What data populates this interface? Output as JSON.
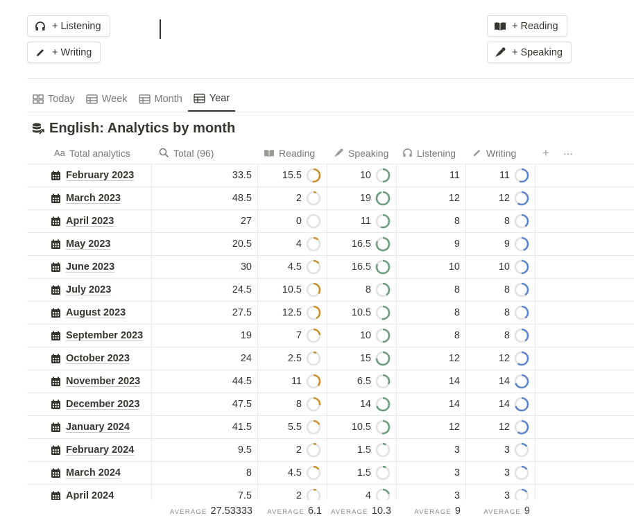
{
  "buttons": {
    "listening": "+ Listening",
    "writing": "+ Writing",
    "reading": "+ Reading",
    "speaking": "+ Speaking"
  },
  "tabs": [
    {
      "label": "Today",
      "icon": "gallery-icon"
    },
    {
      "label": "Week",
      "icon": "table-icon"
    },
    {
      "label": "Month",
      "icon": "table-icon"
    },
    {
      "label": "Year",
      "icon": "table-icon",
      "active": true
    }
  ],
  "view_title": "English: Analytics by month",
  "columns": {
    "name": "Total analytics",
    "total": "Total (96)",
    "reading": "Reading",
    "speaking": "Speaking",
    "listening": "Listening",
    "writing": "Writing",
    "add": "+",
    "more": "···"
  },
  "colors": {
    "reading_ring": "#cb912f",
    "speaking_ring": "#6c9b7d",
    "writing_ring": "#5e87c9",
    "ring_track": "#e3e2e0"
  },
  "rows": [
    {
      "name": "February 2023",
      "total": "33.5",
      "reading": "15.5",
      "speaking": "10",
      "listening": "11",
      "writing": "11",
      "reading_pct": 0.52,
      "speaking_pct": 0.5,
      "writing_pct": 0.55
    },
    {
      "name": "March 2023",
      "total": "48.5",
      "reading": "2",
      "speaking": "19",
      "listening": "12",
      "writing": "12",
      "reading_pct": 0.07,
      "speaking_pct": 0.95,
      "writing_pct": 0.6
    },
    {
      "name": "April 2023",
      "total": "27",
      "reading": "0",
      "speaking": "11",
      "listening": "8",
      "writing": "8",
      "reading_pct": 0,
      "speaking_pct": 0.55,
      "writing_pct": 0.4
    },
    {
      "name": "May 2023",
      "total": "20.5",
      "reading": "4",
      "speaking": "16.5",
      "listening": "9",
      "writing": "9",
      "reading_pct": 0.13,
      "speaking_pct": 0.82,
      "writing_pct": 0.45
    },
    {
      "name": "June 2023",
      "total": "30",
      "reading": "4.5",
      "speaking": "16.5",
      "listening": "10",
      "writing": "10",
      "reading_pct": 0.15,
      "speaking_pct": 0.82,
      "writing_pct": 0.5
    },
    {
      "name": "July 2023",
      "total": "24.5",
      "reading": "10.5",
      "speaking": "8",
      "listening": "8",
      "writing": "8",
      "reading_pct": 0.35,
      "speaking_pct": 0.4,
      "writing_pct": 0.4
    },
    {
      "name": "August 2023",
      "total": "27.5",
      "reading": "12.5",
      "speaking": "10.5",
      "listening": "8",
      "writing": "8",
      "reading_pct": 0.42,
      "speaking_pct": 0.52,
      "writing_pct": 0.4
    },
    {
      "name": "September 2023",
      "total": "19",
      "reading": "7",
      "speaking": "10",
      "listening": "8",
      "writing": "8",
      "reading_pct": 0.23,
      "speaking_pct": 0.5,
      "writing_pct": 0.4
    },
    {
      "name": "October 2023",
      "total": "24",
      "reading": "2.5",
      "speaking": "15",
      "listening": "12",
      "writing": "12",
      "reading_pct": 0.08,
      "speaking_pct": 0.75,
      "writing_pct": 0.6
    },
    {
      "name": "November 2023",
      "total": "44.5",
      "reading": "11",
      "speaking": "6.5",
      "listening": "14",
      "writing": "14",
      "reading_pct": 0.37,
      "speaking_pct": 0.32,
      "writing_pct": 0.7
    },
    {
      "name": "December 2023",
      "total": "47.5",
      "reading": "8",
      "speaking": "14",
      "listening": "14",
      "writing": "14",
      "reading_pct": 0.27,
      "speaking_pct": 0.7,
      "writing_pct": 0.7
    },
    {
      "name": "January 2024",
      "total": "41.5",
      "reading": "5.5",
      "speaking": "10.5",
      "listening": "12",
      "writing": "12",
      "reading_pct": 0.18,
      "speaking_pct": 0.52,
      "writing_pct": 0.6
    },
    {
      "name": "February 2024",
      "total": "9.5",
      "reading": "2",
      "speaking": "1.5",
      "listening": "3",
      "writing": "3",
      "reading_pct": 0.07,
      "speaking_pct": 0.08,
      "writing_pct": 0.15
    },
    {
      "name": "March 2024",
      "total": "8",
      "reading": "4.5",
      "speaking": "1.5",
      "listening": "3",
      "writing": "3",
      "reading_pct": 0.15,
      "speaking_pct": 0.08,
      "writing_pct": 0.15
    },
    {
      "name": "April 2024",
      "total": "7.5",
      "reading": "2",
      "speaking": "4",
      "listening": "3",
      "writing": "3",
      "reading_pct": 0.07,
      "speaking_pct": 0.2,
      "writing_pct": 0.15
    }
  ],
  "footer": {
    "label": "AVERAGE",
    "total": "27.53333",
    "reading": "6.1",
    "speaking": "10.3",
    "listening": "9",
    "writing": "9"
  }
}
